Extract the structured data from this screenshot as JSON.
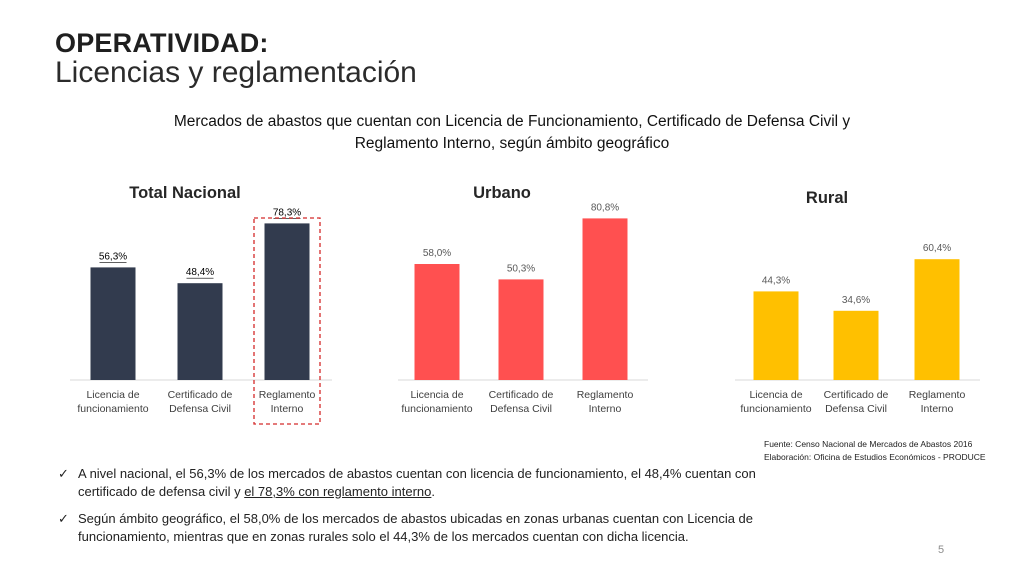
{
  "slide": {
    "title_bold": "OPERATIVIDAD:",
    "title_light": "Licencias y reglamentación",
    "subtitle_line1": "Mercados de abastos que cuentan con Licencia de Funcionamiento, Certificado de Defensa Civil y",
    "subtitle_line2": "Reglamento Interno, según ámbito geográfico",
    "page_number": "5"
  },
  "colors": {
    "nacional": "#323b4e",
    "urbano": "#ff5050",
    "rural": "#ffc000",
    "highlight_border": "#d42a2a"
  },
  "chart_data": [
    {
      "type": "bar",
      "title": "Total Nacional",
      "categories": [
        "Licencia de funcionamiento",
        "Certificado de Defensa Civil",
        "Reglamento Interno"
      ],
      "category_lines": [
        [
          "Licencia de",
          "funcionamiento"
        ],
        [
          "Certificado de",
          "Defensa Civil"
        ],
        [
          "Reglamento",
          "Interno"
        ]
      ],
      "values": [
        56.3,
        48.4,
        78.3
      ],
      "value_labels": [
        "56,3%",
        "48,4%",
        "78,3%"
      ],
      "highlighted_category": "Reglamento Interno",
      "ylim": [
        0,
        100
      ],
      "grid": false
    },
    {
      "type": "bar",
      "title": "Urbano",
      "categories": [
        "Licencia de funcionamiento",
        "Certificado de Defensa Civil",
        "Reglamento Interno"
      ],
      "category_lines": [
        [
          "Licencia de",
          "funcionamiento"
        ],
        [
          "Certificado de",
          "Defensa Civil"
        ],
        [
          "Reglamento",
          "Interno"
        ]
      ],
      "values": [
        58.0,
        50.3,
        80.8
      ],
      "value_labels": [
        "58,0%",
        "50,3%",
        "80,8%"
      ],
      "ylim": [
        0,
        100
      ],
      "grid": false
    },
    {
      "type": "bar",
      "title": "Rural",
      "categories": [
        "Licencia de funcionamiento",
        "Certificado de Defensa Civil",
        "Reglamento Interno"
      ],
      "category_lines": [
        [
          "Licencia de",
          "funcionamiento"
        ],
        [
          "Certificado de",
          "Defensa Civil"
        ],
        [
          "Reglamento",
          "Interno"
        ]
      ],
      "values": [
        44.3,
        34.6,
        60.4
      ],
      "value_labels": [
        "44,3%",
        "34,6%",
        "60,4%"
      ],
      "ylim": [
        0,
        100
      ],
      "grid": false
    }
  ],
  "source": {
    "line1": "Fuente: Censo Nacional de Mercados de Abastos 2016",
    "line2": "Elaboración: Oficina de Estudios Económicos - PRODUCE"
  },
  "bullets": [
    {
      "text_before": "A nivel nacional, el 56,3% de los mercados de abastos cuentan con licencia de funcionamiento, el 48,4% cuentan con certificado de defensa civil y ",
      "text_underlined": "el 78,3% con reglamento interno",
      "text_after": "."
    },
    {
      "text": "Según ámbito geográfico, el 58,0% de los mercados de abastos ubicadas en zonas urbanas cuentan con Licencia de funcionamiento, mientras que en zonas rurales solo el 44,3% de los mercados cuentan con dicha licencia."
    }
  ]
}
